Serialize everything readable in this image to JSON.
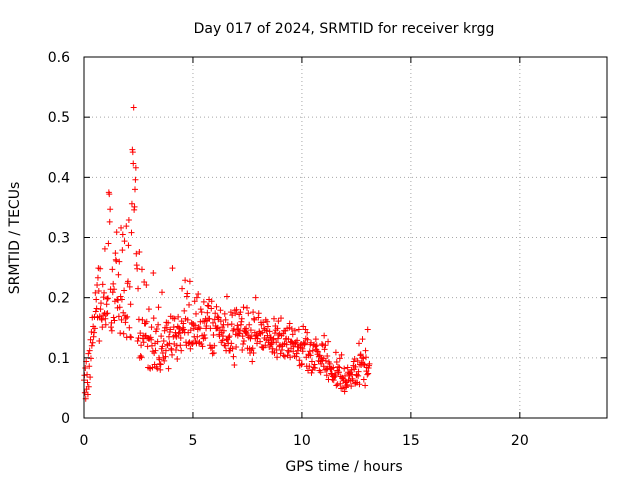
{
  "chart_data": {
    "type": "scatter",
    "title": "Day 017 of 2024, SRMTID for receiver krgg",
    "xlabel": "GPS time / hours",
    "ylabel": "SRMTID / TECUs",
    "xlim": [
      0,
      24
    ],
    "ylim": [
      0,
      0.6
    ],
    "x_ticks": [
      0,
      5,
      10,
      15,
      20
    ],
    "x_tick_labels": [
      "0",
      "5",
      "10",
      "15",
      "20"
    ],
    "y_ticks": [
      0,
      0.1,
      0.2,
      0.3,
      0.4,
      0.5,
      0.6
    ],
    "y_tick_labels": [
      "0",
      "0.1",
      "0.2",
      "0.3",
      "0.4",
      "0.5",
      "0.6"
    ],
    "grid": true,
    "marker": "+",
    "series": [
      {
        "name": "SRMTID",
        "color": "#ff0000",
        "x_start": 0.0,
        "x_step": 0.02,
        "y_values_milliTECU": [
          63,
          71,
          42,
          83,
          32,
          94,
          48,
          72,
          59,
          39,
          107,
          52,
          86,
          112,
          68,
          130,
          99,
          143,
          120,
          167,
          125,
          152,
          135,
          142,
          168,
          149,
          208,
          177,
          197,
          182,
          221,
          167,
          233,
          249,
          211,
          128,
          169,
          248,
          181,
          191,
          165,
          163,
          151,
          222,
          171,
          201,
          208,
          174,
          281,
          165,
          155,
          173,
          189,
          198,
          174,
          199,
          290,
          375,
          372,
          326,
          347,
          214,
          151,
          158,
          145,
          247,
          209,
          223,
          167,
          214,
          162,
          194,
          274,
          263,
          261,
          309,
          197,
          183,
          196,
          238,
          169,
          260,
          184,
          141,
          202,
          316,
          163,
          197,
          279,
          305,
          175,
          140,
          212,
          294,
          170,
          159,
          166,
          319,
          134,
          168,
          224,
          227,
          287,
          329,
          150,
          218,
          135,
          189,
          134,
          308,
          356,
          446,
          442,
          423,
          516,
          346,
          351,
          380,
          396,
          416,
          273,
          254,
          248,
          128,
          215,
          133,
          164,
          276,
          100,
          141,
          103,
          121,
          101,
          247,
          163,
          132,
          137,
          126,
          226,
          157,
          136,
          157,
          137,
          221,
          160,
          133,
          119,
          84,
          132,
          181,
          132,
          83,
          82,
          134,
          130,
          151,
          120,
          84,
          111,
          241,
          166,
          108,
          89,
          124,
          112,
          144,
          85,
          148,
          82,
          127,
          155,
          184,
          100,
          97,
          90,
          80,
          89,
          136,
          115,
          209,
          119,
          108,
          100,
          128,
          95,
          145,
          150,
          102,
          112,
          159,
          150,
          122,
          121,
          158,
          82,
          135,
          124,
          143,
          147,
          169,
          115,
          113,
          105,
          249,
          166,
          135,
          151,
          123,
          165,
          137,
          142,
          113,
          135,
          120,
          98,
          152,
          168,
          140,
          150,
          148,
          142,
          121,
          133,
          112,
          161,
          215,
          145,
          150,
          157,
          147,
          178,
          142,
          229,
          165,
          126,
          121,
          202,
          207,
          163,
          142,
          124,
          188,
          126,
          227,
          115,
          146,
          124,
          158,
          156,
          123,
          125,
          156,
          149,
          135,
          194,
          154,
          128,
          173,
          124,
          200,
          135,
          147,
          206,
          151,
          124,
          126,
          149,
          160,
          181,
          123,
          176,
          137,
          119,
          161,
          132,
          193,
          138,
          160,
          133,
          165,
          149,
          153,
          162,
          175,
          187,
          165,
          186,
          197,
          165,
          121,
          149,
          116,
          182,
          194,
          117,
          107,
          158,
          138,
          108,
          120,
          164,
          174,
          153,
          149,
          185,
          149,
          168,
          150,
          164,
          167,
          139,
          136,
          146,
          179,
          161,
          126,
          142,
          151,
          129,
          136,
          155,
          145,
          121,
          173,
          120,
          163,
          112,
          131,
          202,
          130,
          155,
          124,
          134,
          112,
          136,
          112,
          116,
          176,
          124,
          156,
          171,
          115,
          145,
          102,
          148,
          88,
          179,
          174,
          139,
          118,
          180,
          147,
          154,
          137,
          148,
          141,
          172,
          140,
          145,
          176,
          155,
          160,
          165,
          113,
          136,
          123,
          184,
          128,
          145,
          148,
          144,
          143,
          149,
          141,
          183,
          116,
          138,
          174,
          134,
          155,
          115,
          108,
          132,
          146,
          113,
          136,
          94,
          116,
          176,
          108,
          165,
          163,
          142,
          132,
          200,
          138,
          137,
          124,
          132,
          137,
          167,
          174,
          144,
          141,
          127,
          140,
          159,
          155,
          118,
          142,
          117,
          159,
          117,
          149,
          133,
          146,
          121,
          163,
          130,
          145,
          160,
          137,
          152,
          126,
          129,
          118,
          144,
          134,
          122,
          134,
          123,
          125,
          110,
          115,
          130,
          132,
          165,
          108,
          141,
          153,
          146,
          126,
          113,
          101,
          149,
          132,
          161,
          138,
          119,
          140,
          121,
          107,
          166,
          137,
          113,
          119,
          122,
          140,
          104,
          145,
          124,
          102,
          145,
          131,
          132,
          122,
          149,
          104,
          112,
          131,
          110,
          150,
          157,
          101,
          126,
          116,
          127,
          148,
          125,
          139,
          111,
          119,
          124,
          103,
          145,
          123,
          126,
          102,
          107,
          129,
          118,
          112,
          118,
          147,
          96,
          87,
          121,
          117,
          123,
          89,
          90,
          115,
          111,
          152,
          125,
          122,
          122,
          124,
          147,
          132,
          101,
          86,
          142,
          130,
          79,
          106,
          104,
          86,
          111,
          122,
          104,
          125,
          75,
          94,
          80,
          112,
          121,
          84,
          122,
          89,
          83,
          119,
          131,
          114,
          121,
          111,
          106,
          110,
          95,
          102,
          79,
          104,
          94,
          76,
          90,
          100,
          123,
          96,
          121,
          99,
          86,
          137,
          114,
          80,
          121,
          95,
          81,
          71,
          103,
          82,
          127,
          64,
          93,
          85,
          90,
          82,
          81,
          74,
          82,
          73,
          64,
          69,
          84,
          63,
          68,
          70,
          73,
          70,
          109,
          54,
          93,
          79,
          56,
          85,
          76,
          76,
          84,
          99,
          57,
          69,
          49,
          105,
          66,
          67,
          50,
          65,
          62,
          82,
          44,
          70,
          59,
          51,
          53,
          60,
          55,
          84,
          76,
          63,
          73,
          70,
          74,
          76,
          62,
          53,
          80,
          72,
          65,
          62,
          87,
          94,
          81,
          98,
          57,
          85,
          59,
          71,
          72,
          59,
          95,
          70,
          77,
          124,
          56,
          89,
          104,
          106,
          88,
          92,
          100,
          131,
          90,
          99,
          64,
          88,
          89,
          54,
          112,
          101,
          78,
          84,
          72,
          147,
          74,
          83,
          87,
          90
        ]
      }
    ]
  }
}
